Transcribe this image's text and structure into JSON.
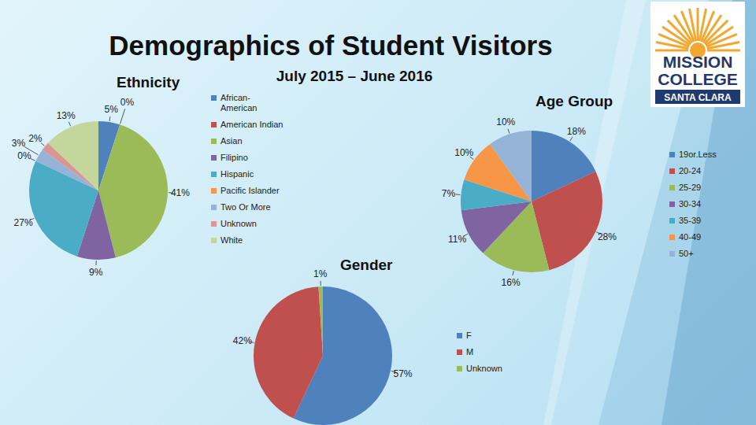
{
  "title": "Demographics of Student Visitors",
  "subtitle": "July 2015 – June 2016",
  "logo": {
    "lines": [
      "MISSION",
      "COLLEGE"
    ],
    "banner": "SANTA CLARA"
  },
  "chart_data": [
    {
      "type": "pie",
      "title": "Ethnicity",
      "categories": [
        "African-American",
        "American Indian",
        "Asian",
        "Filipino",
        "Hispanic",
        "Pacific Islander",
        "Two Or More",
        "Unknown",
        "White"
      ],
      "values": [
        5,
        0,
        41,
        9,
        27,
        0,
        3,
        2,
        13
      ],
      "value_labels": [
        "5%",
        "0%",
        "41%",
        "9%",
        "27%",
        "0%",
        "3%",
        "2%",
        "13%"
      ],
      "colors": [
        "#4f81bd",
        "#c0504d",
        "#9bbb59",
        "#8064a2",
        "#4bacc6",
        "#f79646",
        "#95b3d7",
        "#d99694",
        "#c3d69b"
      ],
      "data_labels": true,
      "legend": "right"
    },
    {
      "type": "pie",
      "title": "Age Group",
      "categories": [
        "19or.Less",
        "20-24",
        "25-29",
        "30-34",
        "35-39",
        "40-49",
        "50+"
      ],
      "values": [
        18,
        28,
        16,
        11,
        7,
        10,
        10
      ],
      "value_labels": [
        "18%",
        "28%",
        "16%",
        "11%",
        "7%",
        "10%",
        "10%"
      ],
      "colors": [
        "#4f81bd",
        "#c0504d",
        "#9bbb59",
        "#8064a2",
        "#4bacc6",
        "#f79646",
        "#95b3d7"
      ],
      "data_labels": true,
      "legend": "right"
    },
    {
      "type": "pie",
      "title": "Gender",
      "categories": [
        "F",
        "M",
        "Unknown"
      ],
      "values": [
        57,
        42,
        1
      ],
      "value_labels": [
        "57%",
        "42%",
        "1%"
      ],
      "colors": [
        "#4f81bd",
        "#c0504d",
        "#9bbb59"
      ],
      "data_labels": true,
      "legend": "right"
    }
  ]
}
